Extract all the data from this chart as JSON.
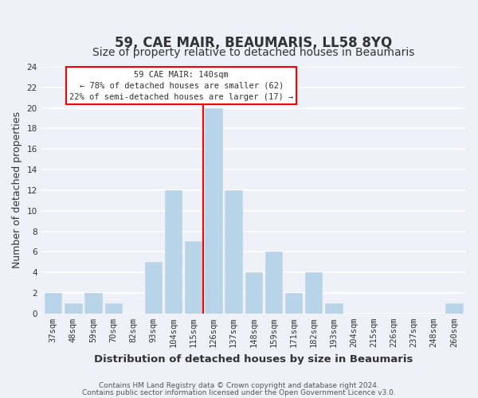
{
  "title": "59, CAE MAIR, BEAUMARIS, LL58 8YQ",
  "subtitle": "Size of property relative to detached houses in Beaumaris",
  "xlabel": "Distribution of detached houses by size in Beaumaris",
  "ylabel": "Number of detached properties",
  "bar_color": "#b8d4e8",
  "bar_edge_color": "#c8d8ea",
  "bins": [
    "37sqm",
    "48sqm",
    "59sqm",
    "70sqm",
    "82sqm",
    "93sqm",
    "104sqm",
    "115sqm",
    "126sqm",
    "137sqm",
    "148sqm",
    "159sqm",
    "171sqm",
    "182sqm",
    "193sqm",
    "204sqm",
    "215sqm",
    "226sqm",
    "237sqm",
    "248sqm",
    "260sqm"
  ],
  "values": [
    2,
    1,
    2,
    1,
    0,
    5,
    12,
    7,
    20,
    12,
    4,
    6,
    2,
    4,
    1,
    0,
    0,
    0,
    0,
    0,
    1
  ],
  "ylim": [
    0,
    24
  ],
  "yticks": [
    0,
    2,
    4,
    6,
    8,
    10,
    12,
    14,
    16,
    18,
    20,
    22,
    24
  ],
  "property_label": "59 CAE MAIR: 140sqm",
  "annotation_line1": "← 78% of detached houses are smaller (62)",
  "annotation_line2": "22% of semi-detached houses are larger (17) →",
  "footer1": "Contains HM Land Registry data © Crown copyright and database right 2024.",
  "footer2": "Contains public sector information licensed under the Open Government Licence v3.0.",
  "background_color": "#eef2f8",
  "grid_color": "#ffffff",
  "title_fontsize": 12,
  "subtitle_fontsize": 10,
  "axis_label_fontsize": 9,
  "tick_fontsize": 7.5,
  "footer_fontsize": 6.5
}
